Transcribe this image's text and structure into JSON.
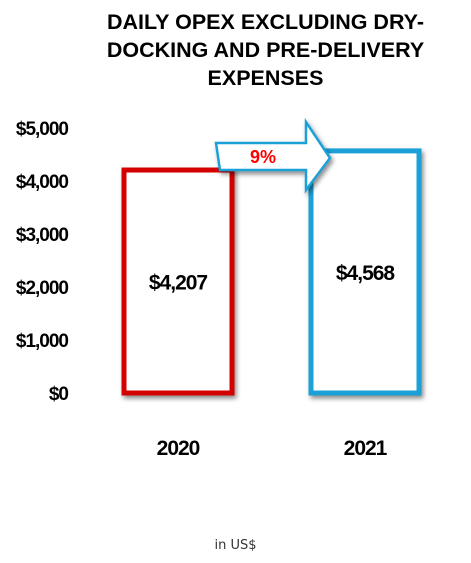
{
  "chart_data": {
    "type": "bar",
    "title": "DAILY OPEX EXCLUDING DRY-DOCKING AND PRE-DELIVERY EXPENSES",
    "categories": [
      "2020",
      "2021"
    ],
    "series": [
      {
        "values": [
          4207,
          4568
        ],
        "labels": [
          "$4,207",
          "$4,568"
        ],
        "colors": [
          "#d40000",
          "#1ea0d8"
        ]
      }
    ],
    "ylim": [
      0,
      5000
    ],
    "yticks": [
      0,
      1000,
      2000,
      3000,
      4000,
      5000
    ],
    "ytick_labels": [
      "$0",
      "$1,000",
      "$2,000",
      "$3,000",
      "$4,000",
      "$5,000"
    ],
    "annotation": "9%",
    "unit_note": "in US$",
    "grid": false,
    "legend": "none"
  }
}
